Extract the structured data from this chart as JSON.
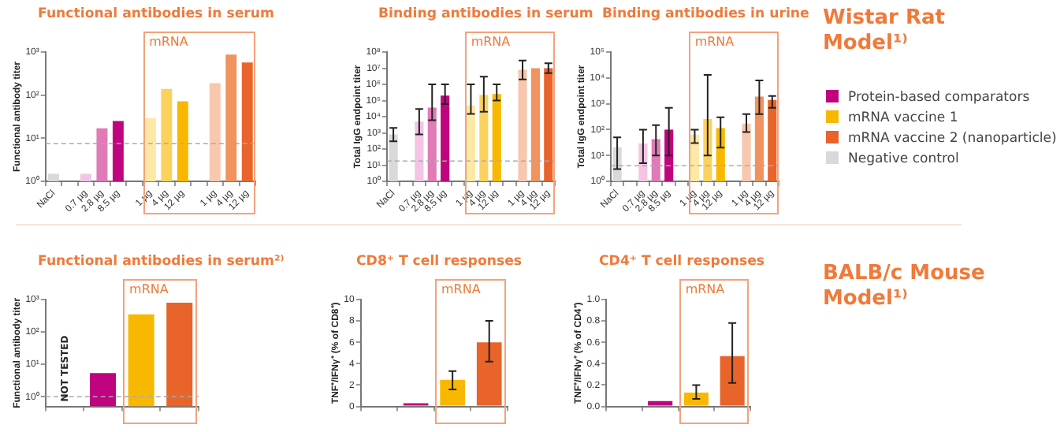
{
  "chart_data": [
    {
      "type": "bar",
      "title": "Functional antibodies in serum",
      "ylabel": "Functional antibody titer",
      "categories": [
        "NaCl",
        null,
        "0.7 µg",
        "2.8 µg",
        "8.5 µg",
        null,
        "1 µg",
        "4 µg",
        "12 µg",
        null,
        "1 µg",
        "4 µg",
        "12 µg"
      ],
      "log": true,
      "ylim": [
        1,
        1000
      ],
      "yticks": [
        {
          "value": 1,
          "label": "10⁰"
        },
        {
          "value": 10,
          "label": "10¹"
        },
        {
          "value": 100,
          "label": "10²"
        },
        {
          "value": 1000,
          "label": "10³"
        }
      ],
      "legend": "right",
      "series": [
        {
          "name": "Protein-based comparators",
          "color": "#c0047f",
          "colors": [
            null,
            null,
            "#f3c4e3",
            "#e07bb8",
            "#c0047f",
            null,
            null,
            null,
            null,
            null,
            null,
            null,
            null
          ],
          "values": [
            null,
            null,
            1.5,
            17,
            25,
            null,
            null,
            null,
            null,
            null,
            null,
            null,
            null
          ]
        },
        {
          "name": "mRNA vaccine 1",
          "color": "#f9b800",
          "colors": [
            null,
            null,
            null,
            null,
            null,
            null,
            "#fde9a6",
            "#fcd25e",
            "#f9b800",
            null,
            null,
            null,
            null
          ],
          "values": [
            null,
            null,
            null,
            null,
            null,
            null,
            29,
            140,
            72,
            null,
            null,
            null,
            null
          ]
        },
        {
          "name": "mRNA vaccine 2 (nanoparticle)",
          "color": "#e8642a",
          "colors": [
            null,
            null,
            null,
            null,
            null,
            null,
            null,
            null,
            null,
            null,
            "#f7c7ae",
            "#f0935e",
            "#e8642a"
          ],
          "values": [
            null,
            null,
            null,
            null,
            null,
            null,
            null,
            null,
            null,
            null,
            190,
            870,
            575
          ]
        },
        {
          "name": "Negative control",
          "color": "#d9d9d9",
          "values": [
            1.5,
            null,
            null,
            null,
            null,
            null,
            null,
            null,
            null,
            null,
            null,
            null,
            null
          ]
        }
      ],
      "ref_lines": [
        {
          "axis": "y",
          "value": 7.5,
          "color": "#aaaaaa",
          "line_style": "dashed"
        }
      ],
      "annotations": [
        "mRNA",
        "Wistar Rat Model¹⁾"
      ]
    },
    {
      "type": "bar",
      "title": "Binding antibodies in serum",
      "ylabel": "Total IgG endpoint titer",
      "categories": [
        "NaCl",
        null,
        "0.7 µg",
        "2.8 µg",
        "8.5 µg",
        null,
        "1 µg",
        "4 µg",
        "12 µg",
        null,
        "1 µg",
        "4 µg",
        "12 µg"
      ],
      "log": true,
      "ylim": [
        1,
        100000000
      ],
      "yticks": [
        {
          "value": 1,
          "label": "10⁰"
        },
        {
          "value": 10,
          "label": "10¹"
        },
        {
          "value": 100,
          "label": "10²"
        },
        {
          "value": 1000,
          "label": "10³"
        },
        {
          "value": 10000,
          "label": "10⁴"
        },
        {
          "value": 100000,
          "label": "10⁵"
        },
        {
          "value": 1000000,
          "label": "10⁶"
        },
        {
          "value": 10000000,
          "label": "10⁷"
        },
        {
          "value": 100000000,
          "label": "10⁸"
        }
      ],
      "series": [
        {
          "color": "#c0047f",
          "colors": [
            null,
            null,
            "#f3c4e3",
            "#e07bb8",
            "#c0047f",
            null,
            null,
            null,
            null,
            null,
            null,
            null,
            null
          ],
          "values": [
            null,
            null,
            5000,
            36000,
            200000,
            null,
            null,
            null,
            null,
            null,
            null,
            null,
            null
          ],
          "errors": [
            null,
            null,
            [
              800,
              30000
            ],
            [
              6000,
              1000000
            ],
            [
              60000,
              1000000
            ],
            null,
            null,
            null,
            null,
            null,
            null,
            null,
            null
          ]
        },
        {
          "color": "#f9b800",
          "colors": [
            null,
            null,
            null,
            null,
            null,
            null,
            "#fde9a6",
            "#fcd25e",
            "#f9b800",
            null,
            null,
            null,
            null
          ],
          "values": [
            null,
            null,
            null,
            null,
            null,
            null,
            50000,
            220000,
            250000,
            null,
            null,
            null,
            null
          ],
          "errors": [
            null,
            null,
            null,
            null,
            null,
            null,
            [
              15000,
              1000000
            ],
            [
              20000,
              3000000
            ],
            [
              100000,
              1000000
            ],
            null,
            null,
            null,
            null
          ]
        },
        {
          "color": "#e8642a",
          "colors": [
            null,
            null,
            null,
            null,
            null,
            null,
            null,
            null,
            null,
            null,
            "#f7c7ae",
            "#f0935e",
            "#e8642a"
          ],
          "values": [
            null,
            null,
            null,
            null,
            null,
            null,
            null,
            null,
            null,
            null,
            8000000,
            10000000,
            10000000
          ],
          "errors": [
            null,
            null,
            null,
            null,
            null,
            null,
            null,
            null,
            null,
            null,
            [
              2000000,
              30000000
            ],
            null,
            [
              5000000,
              20000000
            ]
          ]
        },
        {
          "color": "#d9d9d9",
          "values": [
            800,
            null,
            null,
            null,
            null,
            null,
            null,
            null,
            null,
            null,
            null,
            null,
            null
          ],
          "errors": [
            [
              300,
              2000
            ],
            null,
            null,
            null,
            null,
            null,
            null,
            null,
            null,
            null,
            null,
            null,
            null
          ]
        }
      ],
      "ref_lines": [
        {
          "axis": "y",
          "value": 18,
          "color": "#aaaaaa",
          "line_style": "dashed"
        }
      ],
      "annotations": [
        "mRNA"
      ]
    },
    {
      "type": "bar",
      "title": "Binding antibodies in urine",
      "ylabel": "Total IgG endpoint titer",
      "categories": [
        "NaCl",
        null,
        "0.7 µg",
        "2.8 µg",
        "8.5 µg",
        null,
        "1 µg",
        "4 µg",
        "12 µg",
        null,
        "1 µg",
        "4 µg",
        "12 µg"
      ],
      "log": true,
      "ylim": [
        1,
        100000
      ],
      "yticks": [
        {
          "value": 1,
          "label": "10⁰"
        },
        {
          "value": 10,
          "label": "10¹"
        },
        {
          "value": 100,
          "label": "10²"
        },
        {
          "value": 1000,
          "label": "10³"
        },
        {
          "value": 10000,
          "label": "10⁴"
        },
        {
          "value": 100000,
          "label": "10⁵"
        }
      ],
      "series": [
        {
          "color": "#c0047f",
          "colors": [
            null,
            null,
            "#f3c4e3",
            "#e07bb8",
            "#c0047f",
            null,
            null,
            null,
            null,
            null,
            null,
            null,
            null
          ],
          "values": [
            null,
            null,
            29,
            43,
            100,
            null,
            null,
            null,
            null,
            null,
            null,
            null,
            null
          ],
          "errors": [
            null,
            null,
            [
              5,
              100
            ],
            [
              10,
              150
            ],
            [
              10,
              700
            ],
            null,
            null,
            null,
            null,
            null,
            null,
            null,
            null
          ]
        },
        {
          "color": "#f9b800",
          "colors": [
            null,
            null,
            null,
            null,
            null,
            null,
            "#fde9a6",
            "#fcd25e",
            "#f9b800",
            null,
            null,
            null,
            null
          ],
          "values": [
            null,
            null,
            null,
            null,
            null,
            null,
            63,
            260,
            115,
            null,
            null,
            null,
            null
          ],
          "errors": [
            null,
            null,
            null,
            null,
            null,
            null,
            [
              30,
              100
            ],
            [
              10,
              13000
            ],
            [
              20,
              300
            ],
            null,
            null,
            null,
            null
          ]
        },
        {
          "color": "#e8642a",
          "colors": [
            null,
            null,
            null,
            null,
            null,
            null,
            null,
            null,
            null,
            null,
            "#f7c7ae",
            "#f0935e",
            "#e8642a"
          ],
          "values": [
            null,
            null,
            null,
            null,
            null,
            null,
            null,
            null,
            null,
            null,
            170,
            1900,
            1400
          ],
          "errors": [
            null,
            null,
            null,
            null,
            null,
            null,
            null,
            null,
            null,
            null,
            [
              80,
              400
            ],
            [
              400,
              8000
            ],
            [
              700,
              2000
            ]
          ]
        },
        {
          "color": "#d9d9d9",
          "values": [
            21,
            null,
            null,
            null,
            null,
            null,
            null,
            null,
            null,
            null,
            null,
            null,
            null
          ],
          "errors": [
            [
              3,
              50
            ],
            null,
            null,
            null,
            null,
            null,
            null,
            null,
            null,
            null,
            null,
            null,
            null
          ]
        }
      ],
      "ref_lines": [
        {
          "axis": "y",
          "value": 4,
          "color": "#aaaaaa",
          "line_style": "dashed"
        }
      ],
      "annotations": [
        "mRNA"
      ]
    },
    {
      "type": "bar",
      "title": "Functional antibodies in serum²⁾",
      "ylabel": "Functional antibody titer",
      "categories": [
        null,
        null,
        null,
        null
      ],
      "log": true,
      "ylim": [
        0.5,
        1000
      ],
      "yticks": [
        {
          "value": 1,
          "label": "10⁰"
        },
        {
          "value": 10,
          "label": "10¹"
        },
        {
          "value": 100,
          "label": "10²"
        },
        {
          "value": 1000,
          "label": "10³"
        }
      ],
      "series": [
        {
          "color": "#c0047f",
          "values": [
            null,
            5.4,
            null,
            null
          ]
        },
        {
          "color": "#f9b800",
          "values": [
            null,
            null,
            350,
            null
          ]
        },
        {
          "color": "#e8642a",
          "values": [
            null,
            null,
            null,
            800
          ]
        }
      ],
      "ref_lines": [
        {
          "axis": "y",
          "value": 1,
          "color": "#aaaaaa",
          "line_style": "dashed"
        }
      ],
      "annotations": [
        "NOT TESTED",
        "mRNA",
        "BALB/c Mouse Model¹⁾"
      ]
    },
    {
      "type": "bar",
      "title": "CD8⁺ T cell responses",
      "ylabel": "TNF⁺/IFNγ⁺ (% of CD8⁺)",
      "categories": [
        null,
        null,
        null,
        null
      ],
      "ylim": [
        0,
        10
      ],
      "yticks": [
        0,
        2,
        4,
        6,
        8,
        10
      ],
      "series": [
        {
          "color": "#c0047f",
          "values": [
            null,
            0.3,
            null,
            null
          ]
        },
        {
          "color": "#f9b800",
          "values": [
            null,
            null,
            2.5,
            null
          ],
          "errors": [
            null,
            null,
            [
              1.6,
              3.3
            ],
            null
          ]
        },
        {
          "color": "#e8642a",
          "values": [
            null,
            null,
            null,
            6
          ],
          "errors": [
            null,
            null,
            null,
            [
              4.2,
              8
            ]
          ]
        }
      ],
      "annotations": [
        "mRNA"
      ]
    },
    {
      "type": "bar",
      "title": "CD4⁺ T cell responses",
      "ylabel": "TNF⁺/IFNγ⁺ (% of CD4⁺)",
      "categories": [
        null,
        null,
        null,
        null
      ],
      "ylim": [
        0,
        1
      ],
      "yticks": [
        {
          "value": 0,
          "label": "0.0"
        },
        {
          "value": 0.2,
          "label": "0.2"
        },
        {
          "value": 0.4,
          "label": "0.4"
        },
        {
          "value": 0.6,
          "label": "0.6"
        },
        {
          "value": 0.8,
          "label": "0.8"
        },
        {
          "value": 1,
          "label": "1.0"
        }
      ],
      "series": [
        {
          "color": "#c0047f",
          "values": [
            null,
            0.05,
            null,
            null
          ]
        },
        {
          "color": "#f9b800",
          "values": [
            null,
            null,
            0.13,
            null
          ],
          "errors": [
            null,
            null,
            [
              0.07,
              0.2
            ],
            null
          ]
        },
        {
          "color": "#e8642a",
          "values": [
            null,
            null,
            null,
            0.47
          ],
          "errors": [
            null,
            null,
            null,
            [
              0.22,
              0.78
            ]
          ]
        }
      ],
      "annotations": [
        "mRNA"
      ]
    }
  ]
}
